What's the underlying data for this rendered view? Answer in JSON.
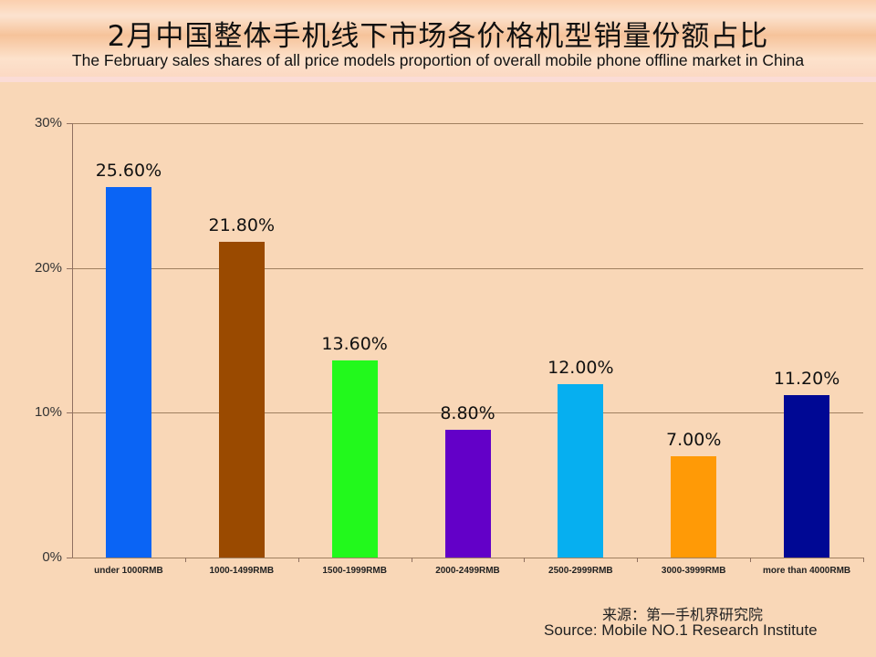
{
  "header": {
    "title_cn": "2月中国整体手机线下市场各价格机型销量份额占比",
    "title_en": "The February sales shares of all price models proportion of overall mobile phone offline market in China"
  },
  "axis": {
    "y_ticks": [
      "30%",
      "20%",
      "10%",
      "0%"
    ]
  },
  "bars": [
    {
      "category": "under 1000RMB",
      "label": "25.60%",
      "value": 25.6,
      "color": "#0a64f5"
    },
    {
      "category": "1000-1499RMB",
      "label": "21.80%",
      "value": 21.8,
      "color": "#9a4a00"
    },
    {
      "category": "1500-1999RMB",
      "label": "13.60%",
      "value": 13.6,
      "color": "#22f91c"
    },
    {
      "category": "2000-2499RMB",
      "label": "8.80%",
      "value": 8.8,
      "color": "#6300c8"
    },
    {
      "category": "2500-2999RMB",
      "label": "12.00%",
      "value": 12.0,
      "color": "#06aff0"
    },
    {
      "category": "3000-3999RMB",
      "label": "7.00%",
      "value": 7.0,
      "color": "#ff9a06"
    },
    {
      "category": "more than 4000RMB",
      "label": "11.20%",
      "value": 11.2,
      "color": "#000894"
    }
  ],
  "source": {
    "cn": "来源：第一手机界研究院",
    "en": "Source: Mobile NO.1 Research Institute"
  },
  "chart_data": {
    "type": "bar",
    "title": "2月中国整体手机线下市场各价格机型销量份额占比 / The February sales shares of all price models proportion of overall mobile phone offline market in China",
    "categories": [
      "under 1000RMB",
      "1000-1499RMB",
      "1500-1999RMB",
      "2000-2499RMB",
      "2500-2999RMB",
      "3000-3999RMB",
      "more than 4000RMB"
    ],
    "values": [
      25.6,
      21.8,
      13.6,
      8.8,
      12.0,
      7.0,
      11.2
    ],
    "data_labels": [
      "25.60%",
      "21.80%",
      "13.60%",
      "8.80%",
      "12.00%",
      "7.00%",
      "11.20%"
    ],
    "xlabel": "",
    "ylabel": "",
    "ylim": [
      0,
      30
    ],
    "y_ticks": [
      "0%",
      "10%",
      "20%",
      "30%"
    ],
    "grid": true,
    "legend": "none",
    "annotation": "来源：第一手机界研究院 / Source: Mobile NO.1 Research Institute"
  }
}
